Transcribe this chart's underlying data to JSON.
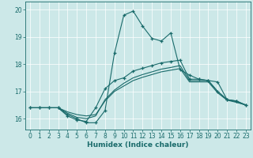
{
  "xlabel": "Humidex (Indice chaleur)",
  "bg_color": "#cce8e8",
  "line_color": "#1a6b6b",
  "xlim": [
    -0.5,
    23.5
  ],
  "ylim": [
    15.6,
    20.3
  ],
  "yticks": [
    16,
    17,
    18,
    19,
    20
  ],
  "xticks": [
    0,
    1,
    2,
    3,
    4,
    5,
    6,
    7,
    8,
    9,
    10,
    11,
    12,
    13,
    14,
    15,
    16,
    17,
    18,
    19,
    20,
    21,
    22,
    23
  ],
  "lines": [
    {
      "x": [
        0,
        1,
        2,
        3,
        4,
        5,
        6,
        7,
        8,
        9,
        10,
        11,
        12,
        13,
        14,
        15,
        16,
        17,
        18,
        19,
        20,
        21,
        22,
        23
      ],
      "y": [
        16.4,
        16.4,
        16.4,
        16.4,
        16.15,
        16.0,
        15.85,
        15.85,
        16.3,
        18.4,
        19.8,
        19.95,
        19.4,
        18.95,
        18.85,
        19.15,
        17.8,
        17.6,
        17.45,
        17.4,
        17.35,
        16.7,
        16.65,
        16.5
      ],
      "marker": true
    },
    {
      "x": [
        0,
        1,
        2,
        3,
        4,
        5,
        6,
        7,
        8,
        9,
        10,
        11,
        12,
        13,
        14,
        15,
        16,
        17,
        18,
        19,
        20,
        21,
        22,
        23
      ],
      "y": [
        16.4,
        16.4,
        16.4,
        16.4,
        16.1,
        15.95,
        15.9,
        16.4,
        17.1,
        17.4,
        17.5,
        17.75,
        17.85,
        17.95,
        18.05,
        18.1,
        18.15,
        17.45,
        17.45,
        17.4,
        17.0,
        16.7,
        16.65,
        16.5
      ],
      "marker": true
    },
    {
      "x": [
        0,
        1,
        2,
        3,
        4,
        5,
        6,
        7,
        8,
        9,
        10,
        11,
        12,
        13,
        14,
        15,
        16,
        17,
        18,
        19,
        20,
        21,
        22,
        23
      ],
      "y": [
        16.4,
        16.4,
        16.4,
        16.4,
        16.2,
        16.05,
        16.0,
        16.1,
        16.7,
        17.05,
        17.3,
        17.5,
        17.62,
        17.72,
        17.82,
        17.88,
        17.95,
        17.4,
        17.4,
        17.4,
        17.0,
        16.7,
        16.62,
        16.5
      ],
      "marker": false
    },
    {
      "x": [
        0,
        1,
        2,
        3,
        4,
        5,
        6,
        7,
        8,
        9,
        10,
        11,
        12,
        13,
        14,
        15,
        16,
        17,
        18,
        19,
        20,
        21,
        22,
        23
      ],
      "y": [
        16.4,
        16.4,
        16.4,
        16.4,
        16.25,
        16.15,
        16.1,
        16.15,
        16.65,
        17.0,
        17.2,
        17.4,
        17.52,
        17.62,
        17.72,
        17.78,
        17.84,
        17.35,
        17.35,
        17.35,
        16.95,
        16.68,
        16.6,
        16.5
      ],
      "marker": false
    }
  ]
}
